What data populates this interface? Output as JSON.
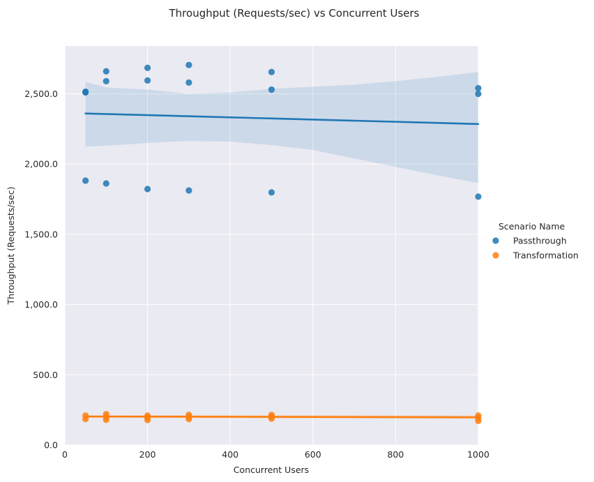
{
  "chart_data": {
    "type": "scatter",
    "title": "Throughput (Requests/sec) vs Concurrent Users",
    "xlabel": "Concurrent Users",
    "ylabel": "Throughput (Requests/sec)",
    "xlim": [
      0,
      1000
    ],
    "ylim": [
      0,
      2840
    ],
    "x_ticks": [
      0,
      200,
      400,
      600,
      800,
      1000
    ],
    "x_tick_labels": [
      "0",
      "200",
      "400",
      "600",
      "800",
      "1000"
    ],
    "y_ticks": [
      0,
      500,
      1000,
      1500,
      2000,
      2500
    ],
    "y_tick_labels": [
      "0.0",
      "500.0",
      "1,000.0",
      "1,500.0",
      "2,000.0",
      "2,500.0"
    ],
    "grid": true,
    "legend": {
      "title": "Scenario Name",
      "placement": "right"
    },
    "series": [
      {
        "name": "Passthrough",
        "color": "#1f77b4",
        "points": [
          [
            50,
            2515
          ],
          [
            50,
            2510
          ],
          [
            50,
            1882
          ],
          [
            100,
            2660
          ],
          [
            100,
            2590
          ],
          [
            100,
            1862
          ],
          [
            200,
            2685
          ],
          [
            200,
            2595
          ],
          [
            200,
            1822
          ],
          [
            300,
            2705
          ],
          [
            300,
            2580
          ],
          [
            300,
            1812
          ],
          [
            500,
            2655
          ],
          [
            500,
            2530
          ],
          [
            500,
            1798
          ],
          [
            1000,
            2540
          ],
          [
            1000,
            2500
          ],
          [
            1000,
            1768
          ]
        ],
        "trend": [
          [
            50,
            2360
          ],
          [
            1000,
            2285
          ]
        ],
        "ci_band": {
          "x": [
            50,
            100,
            200,
            300,
            400,
            500,
            600,
            700,
            800,
            900,
            1000
          ],
          "upper": [
            2585,
            2545,
            2530,
            2500,
            2510,
            2535,
            2550,
            2565,
            2590,
            2620,
            2655
          ],
          "lower": [
            2125,
            2130,
            2150,
            2165,
            2160,
            2135,
            2100,
            2040,
            1980,
            1920,
            1865
          ]
        }
      },
      {
        "name": "Transformation",
        "color": "#ff7f0e",
        "points": [
          [
            50,
            210
          ],
          [
            50,
            185
          ],
          [
            100,
            220
          ],
          [
            100,
            200
          ],
          [
            100,
            180
          ],
          [
            200,
            210
          ],
          [
            200,
            195
          ],
          [
            200,
            178
          ],
          [
            300,
            215
          ],
          [
            300,
            200
          ],
          [
            300,
            185
          ],
          [
            500,
            215
          ],
          [
            500,
            200
          ],
          [
            500,
            188
          ],
          [
            1000,
            210
          ],
          [
            1000,
            192
          ],
          [
            1000,
            172
          ]
        ],
        "trend": [
          [
            50,
            203
          ],
          [
            1000,
            198
          ]
        ],
        "ci_band": {
          "x": [
            50,
            1000
          ],
          "upper": [
            212,
            212
          ],
          "lower": [
            194,
            184
          ]
        }
      }
    ]
  }
}
